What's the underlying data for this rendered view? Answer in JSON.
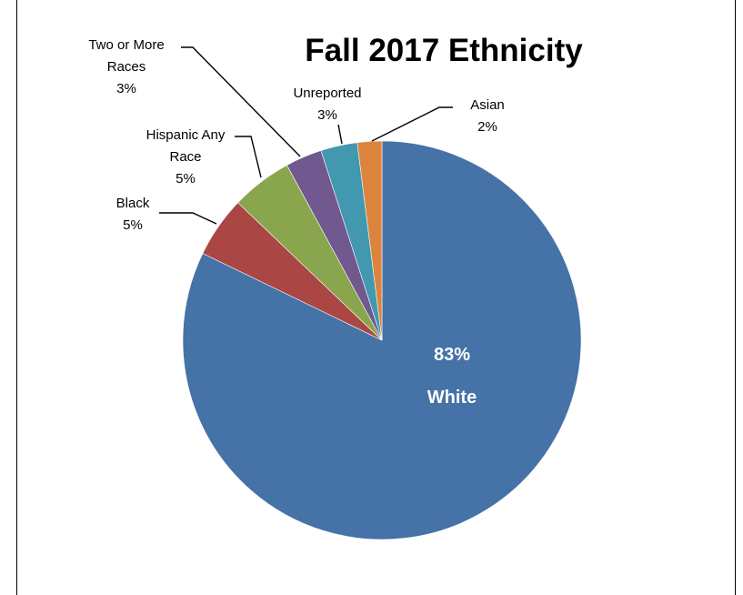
{
  "chart_data": {
    "type": "pie",
    "title": "Fall 2017 Ethnicity",
    "slices": [
      {
        "label": [
          "White"
        ],
        "pct_text": "83%",
        "value": 83,
        "color": "#4572A7"
      },
      {
        "label": [
          "Black"
        ],
        "pct_text": "5%",
        "value": 5,
        "color": "#AA4643"
      },
      {
        "label": [
          "Hispanic Any",
          "Race"
        ],
        "pct_text": "5%",
        "value": 5,
        "color": "#89A54E"
      },
      {
        "label": [
          "Two or More",
          "Races"
        ],
        "pct_text": "3%",
        "value": 3,
        "color": "#71588F"
      },
      {
        "label": [
          "Unreported"
        ],
        "pct_text": "3%",
        "value": 3,
        "color": "#4198AF"
      },
      {
        "label": [
          "Asian"
        ],
        "pct_text": "2%",
        "value": 2,
        "color": "#DB843D"
      }
    ]
  }
}
